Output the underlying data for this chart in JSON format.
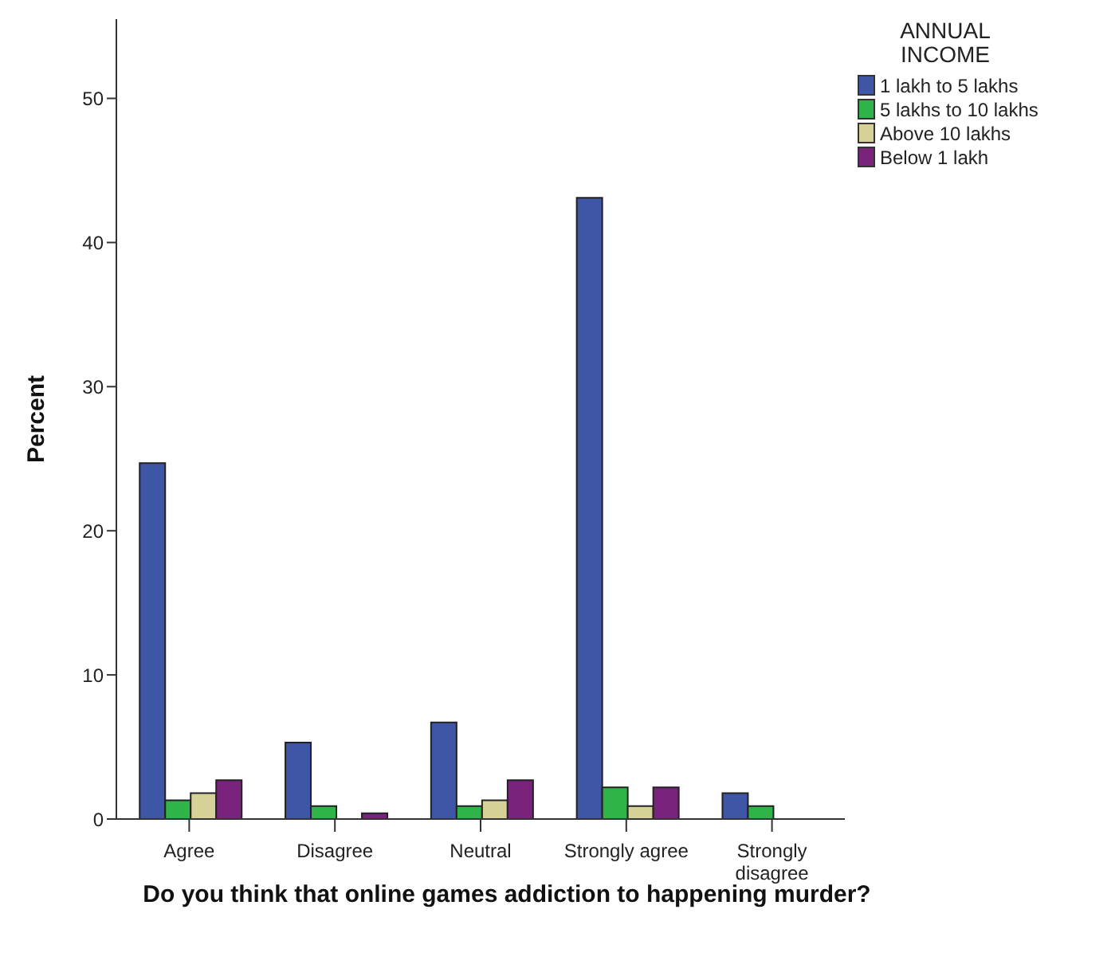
{
  "chart_data": {
    "type": "bar",
    "xlabel": "Do you think that online games addiction to happening murder?",
    "ylabel": "Percent",
    "legend_title": "ANNUAL INCOME",
    "categories": [
      "Agree",
      "Disagree",
      "Neutral",
      "Strongly agree",
      "Strongly disagree"
    ],
    "series": [
      {
        "name": "1 lakh to 5 lakhs",
        "color": "#3f55a5",
        "values": [
          24.7,
          5.3,
          6.7,
          43.1,
          1.8
        ]
      },
      {
        "name": "5 lakhs to 10 lakhs",
        "color": "#2fb44a",
        "values": [
          1.3,
          0.9,
          0.9,
          2.2,
          0.9
        ]
      },
      {
        "name": "Above 10 lakhs",
        "color": "#d6d196",
        "values": [
          1.8,
          0,
          1.3,
          0.9,
          0
        ]
      },
      {
        "name": "Below 1 lakh",
        "color": "#7a237c",
        "values": [
          2.7,
          0.4,
          2.7,
          2.2,
          0
        ]
      }
    ],
    "ylim": [
      0,
      55.5
    ],
    "yticks": [
      0,
      10,
      20,
      30,
      40,
      50
    ],
    "grid": false,
    "legend": "top right"
  }
}
